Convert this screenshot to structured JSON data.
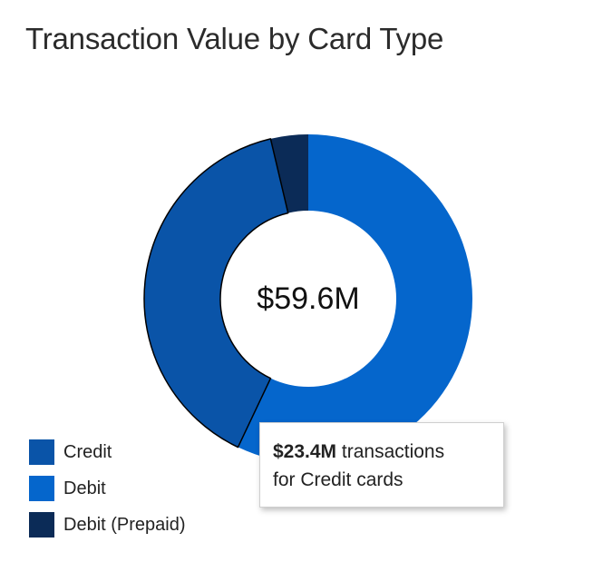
{
  "chart_data": {
    "type": "pie",
    "title": "Transaction Value by Card Type",
    "center_label": "$59.6M",
    "categories": [
      "Credit",
      "Debit",
      "Debit (Prepaid)"
    ],
    "values": [
      23.4,
      34.0,
      2.2
    ],
    "unit": "$M",
    "colors": [
      "#0a54a8",
      "#0566cc",
      "#0b2b57"
    ],
    "legend_position": "bottom-left",
    "highlighted_category": "Credit",
    "tooltip": {
      "value": "$23.4M",
      "text_suffix": " transactions",
      "text_line2": "for Credit cards"
    }
  }
}
